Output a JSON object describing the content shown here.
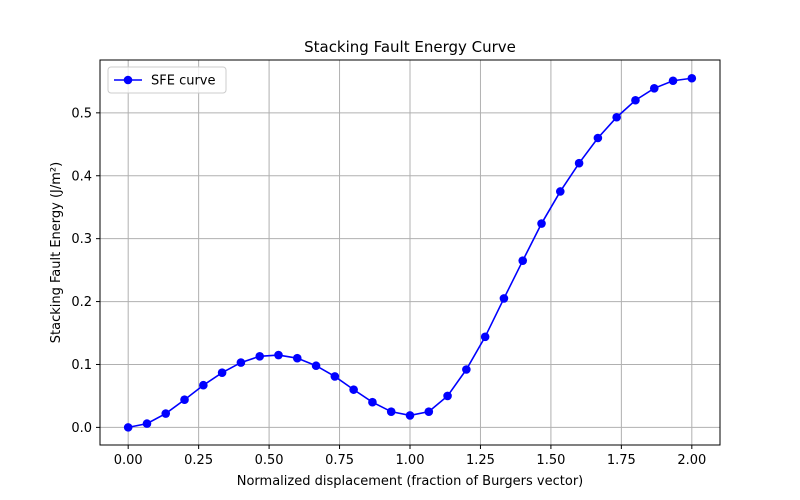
{
  "chart_data": {
    "type": "line",
    "title": "Stacking Fault Energy Curve",
    "xlabel": "Normalized displacement (fraction of Burgers vector)",
    "ylabel": "Stacking Fault Energy (J/m²)",
    "xlim": [
      -0.1,
      2.1
    ],
    "ylim": [
      -0.028,
      0.584
    ],
    "xticks": [
      0.0,
      0.25,
      0.5,
      0.75,
      1.0,
      1.25,
      1.5,
      1.75,
      2.0
    ],
    "xtick_labels": [
      "0.00",
      "0.25",
      "0.50",
      "0.75",
      "1.00",
      "1.25",
      "1.50",
      "1.75",
      "2.00"
    ],
    "yticks": [
      0.0,
      0.1,
      0.2,
      0.3,
      0.4,
      0.5
    ],
    "ytick_labels": [
      "0.0",
      "0.1",
      "0.2",
      "0.3",
      "0.4",
      "0.5"
    ],
    "grid": true,
    "legend_position": "top-left",
    "series": [
      {
        "name": "SFE curve",
        "color": "#0000ff",
        "marker": "circle",
        "x": [
          0.0,
          0.0667,
          0.1333,
          0.2,
          0.2667,
          0.3333,
          0.4,
          0.4667,
          0.5333,
          0.6,
          0.6667,
          0.7333,
          0.8,
          0.8667,
          0.9333,
          1.0,
          1.0667,
          1.1333,
          1.2,
          1.2667,
          1.3333,
          1.4,
          1.4667,
          1.5333,
          1.6,
          1.6667,
          1.7333,
          1.8,
          1.8667,
          1.9333,
          2.0
        ],
        "y": [
          0.0,
          0.006,
          0.022,
          0.044,
          0.067,
          0.087,
          0.103,
          0.113,
          0.115,
          0.11,
          0.098,
          0.081,
          0.06,
          0.04,
          0.025,
          0.019,
          0.025,
          0.05,
          0.092,
          0.144,
          0.205,
          0.265,
          0.324,
          0.375,
          0.42,
          0.46,
          0.493,
          0.52,
          0.539,
          0.551,
          0.555
        ]
      }
    ]
  }
}
